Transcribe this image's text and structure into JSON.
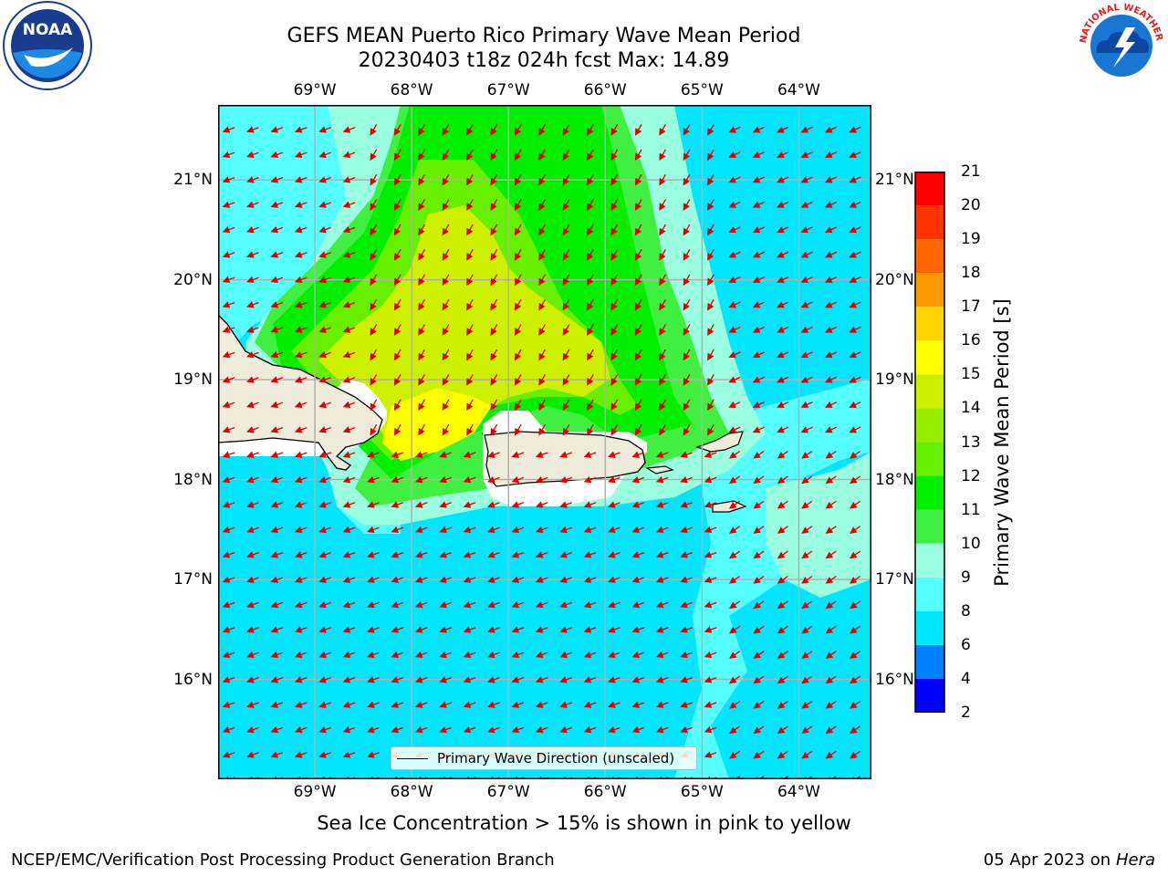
{
  "title": {
    "line1": "GEFS MEAN Puerto Rico Primary Wave Mean Period",
    "line2": "20230403 t18z 024h fcst   Max: 14.89"
  },
  "logos": {
    "left": {
      "icon": "noaa-logo-icon",
      "text": "NOAA"
    },
    "right": {
      "icon": "nws-logo-icon",
      "text": "NATIONAL WEATHER SERVICE"
    }
  },
  "map": {
    "lon_ticks": [
      "69°W",
      "68°W",
      "67°W",
      "66°W",
      "65°W",
      "64°W"
    ],
    "lat_ticks": [
      "21°N",
      "20°N",
      "19°N",
      "18°N",
      "17°N",
      "16°N"
    ],
    "extent": {
      "lon": [
        -70.0,
        -63.25
      ],
      "lat": [
        15.0,
        21.75
      ]
    },
    "gridlines": true,
    "land_color": "#efecdc",
    "vector_color": "#e00000",
    "legend": "Primary Wave Direction (unscaled)"
  },
  "colorbar": {
    "title": "Primary Wave Mean Period [s]",
    "labels": [
      "2",
      "4",
      "6",
      "8",
      "9",
      "10",
      "11",
      "12",
      "13",
      "14",
      "15",
      "16",
      "17",
      "18",
      "19",
      "20",
      "21"
    ],
    "colors": [
      "#0000ff",
      "#0080ff",
      "#00e6ff",
      "#55ffff",
      "#99ffe0",
      "#40f040",
      "#00ee00",
      "#66f000",
      "#99ee00",
      "#ccf000",
      "#ffff00",
      "#ffd400",
      "#ff9900",
      "#ff6600",
      "#ff3300",
      "#ff0000"
    ]
  },
  "note": "Sea Ice Concentration > 15% is shown in pink to yellow",
  "footer": {
    "left": "NCEP/EMC/Verification Post Processing Product Generation Branch",
    "right_prefix": "05 Apr 2023 on",
    "right_machine": "Hera"
  }
}
